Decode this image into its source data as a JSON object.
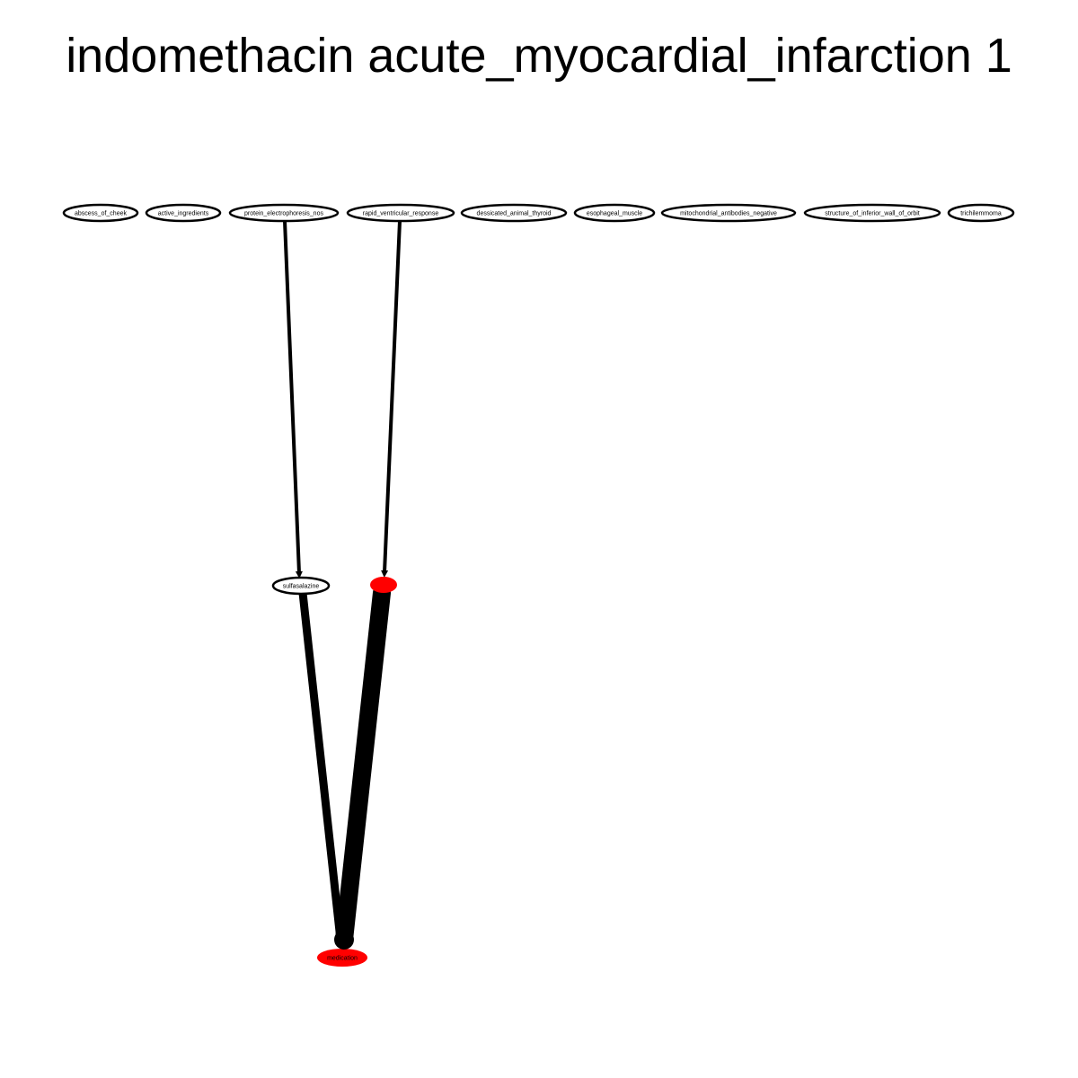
{
  "title": "indomethacin acute_myocardial_infarction 1",
  "colors": {
    "background": "#ffffff",
    "edge": "#000000",
    "node_border": "#000000",
    "node_fill": "#ffffff",
    "highlight": "#ff0000"
  },
  "nodes": [
    {
      "id": "abscess_of_cheek",
      "label": "abscess_of_cheek",
      "highlighted": false
    },
    {
      "id": "active_ingredients",
      "label": "active_ingredients",
      "highlighted": false
    },
    {
      "id": "protein_electrophoresis_nos",
      "label": "protein_electrophoresis_nos",
      "highlighted": false
    },
    {
      "id": "rapid_ventricular_response",
      "label": "rapid_ventricular_response",
      "highlighted": false
    },
    {
      "id": "dessicated_animal_thyroid",
      "label": "dessicated_animal_thyroid",
      "highlighted": false
    },
    {
      "id": "esophageal_muscle",
      "label": "esophageal_muscle",
      "highlighted": false
    },
    {
      "id": "mitochondrial_antibodies_negative",
      "label": "mitochondrial_antibodies_negative",
      "highlighted": false
    },
    {
      "id": "structure_of_inferior_wall_of_orbit",
      "label": "structure_of_inferior_wall_of_orbit",
      "highlighted": false
    },
    {
      "id": "trichilemmoma",
      "label": "trichilemmoma",
      "highlighted": false
    },
    {
      "id": "sulfasalazine",
      "label": "sulfasalazine",
      "highlighted": false
    },
    {
      "id": "unlabeled_red",
      "label": "",
      "highlighted": true
    },
    {
      "id": "medication",
      "label": "medication",
      "highlighted": true
    }
  ],
  "edges": [
    {
      "from": "protein_electrophoresis_nos",
      "to": "sulfasalazine",
      "weight": 1
    },
    {
      "from": "rapid_ventricular_response",
      "to": "unlabeled_red",
      "weight": 1
    },
    {
      "from": "sulfasalazine",
      "to": "medication",
      "weight": 2
    },
    {
      "from": "unlabeled_red",
      "to": "medication",
      "weight": 5
    }
  ]
}
